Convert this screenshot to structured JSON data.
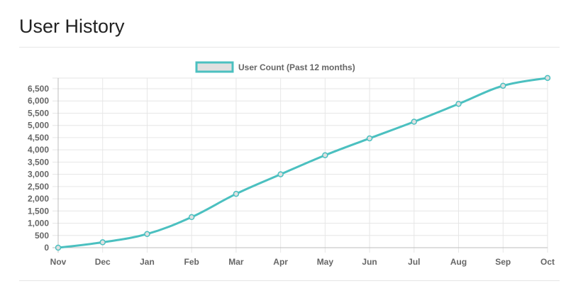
{
  "panel": {
    "title": "User History"
  },
  "chart_data": {
    "type": "line",
    "title": "",
    "xlabel": "",
    "ylabel": "",
    "categories": [
      "Nov",
      "Dec",
      "Jan",
      "Feb",
      "Mar",
      "Apr",
      "May",
      "Jun",
      "Jul",
      "Aug",
      "Sep",
      "Oct"
    ],
    "series": [
      {
        "name": "User Count (Past 12 months)",
        "values": [
          0,
          220,
          560,
          1250,
          2200,
          3000,
          3780,
          4470,
          5150,
          5880,
          6620,
          6940
        ],
        "color": "#4bc0c0",
        "fill": "#e0e0e0"
      }
    ],
    "ylim": [
      0,
      6500
    ],
    "y_ticks": [
      0,
      500,
      1000,
      1500,
      2000,
      2500,
      3000,
      3500,
      4000,
      4500,
      5000,
      5500,
      6000,
      6500
    ],
    "y_tick_labels": [
      "0",
      "500",
      "1,000",
      "1,500",
      "2,000",
      "2,500",
      "3,000",
      "3,500",
      "4,000",
      "4,500",
      "5,000",
      "5,500",
      "6,000",
      "6,500"
    ],
    "grid": true,
    "legend_position": "top-center"
  }
}
